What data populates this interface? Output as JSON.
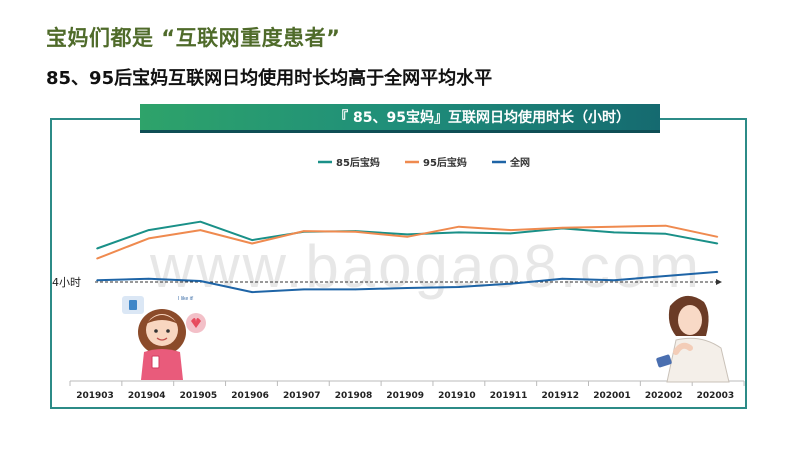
{
  "slide": {
    "title": "宝妈们都是 “互联网重度患者”",
    "subtitle": "85、95后宝妈互联网日均使用时长均高于全网平均水平"
  },
  "watermark": "www.baogao8.com",
  "chart_data": {
    "type": "line",
    "title": "『 85、95宝妈』互联网日均使用时长（小时）",
    "categories": [
      "201903",
      "201904",
      "201905",
      "201906",
      "201907",
      "201908",
      "201909",
      "201910",
      "201911",
      "201912",
      "202001",
      "202002",
      "202003"
    ],
    "series": [
      {
        "name": "85后宝妈",
        "color": "#1a9088",
        "values": [
          5.0,
          5.55,
          5.8,
          5.25,
          5.5,
          5.52,
          5.42,
          5.48,
          5.45,
          5.6,
          5.48,
          5.44,
          5.15
        ]
      },
      {
        "name": "95后宝妈",
        "color": "#ef8a4f",
        "values": [
          4.7,
          5.3,
          5.55,
          5.15,
          5.52,
          5.5,
          5.35,
          5.65,
          5.55,
          5.62,
          5.65,
          5.68,
          5.35
        ]
      },
      {
        "name": "全网",
        "color": "#1e64a6",
        "values": [
          4.05,
          4.1,
          4.03,
          3.7,
          3.78,
          3.78,
          3.82,
          3.85,
          3.95,
          4.1,
          4.05,
          4.18,
          4.3
        ]
      }
    ],
    "reference_line": {
      "label": "4小时",
      "value": 4
    },
    "legend_position": "top-center",
    "grid": false
  }
}
